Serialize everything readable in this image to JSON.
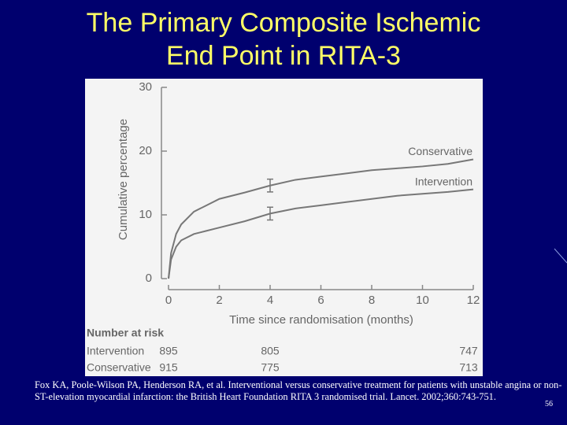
{
  "slide": {
    "title_lines": [
      "The Primary Composite Ischemic",
      "End Point in RITA-3"
    ],
    "footnote": "Fox KA, Poole-Wilson PA, Henderson RA, et al. Interventional versus conservative treatment for patients with unstable angina or non-ST-elevation myocardial infarction: the British Heart Foundation RITA 3 randomised trial. Lancet. 2002;360:743-751.",
    "page_number": "56"
  },
  "chart_data": {
    "type": "line",
    "x_label": "Time since randomisation (months)",
    "y_label": "Cumulative percentage",
    "x": [
      0,
      0.1,
      0.3,
      0.5,
      1,
      1.5,
      2,
      3,
      4,
      5,
      6,
      7,
      8,
      9,
      10,
      11,
      12
    ],
    "series": [
      {
        "name": "Conservative",
        "color": "#777777",
        "values": [
          0,
          4,
          7,
          8.5,
          10.5,
          11.5,
          12.5,
          13.5,
          14.6,
          15.5,
          16,
          16.5,
          17,
          17.3,
          17.6,
          18,
          18.7
        ],
        "errors": [
          null,
          null,
          null,
          null,
          null,
          null,
          null,
          null,
          1,
          null,
          null,
          null,
          null,
          null,
          null,
          null,
          null
        ]
      },
      {
        "name": "Intervention",
        "color": "#777777",
        "values": [
          0,
          3,
          5,
          6,
          7,
          7.5,
          8,
          9,
          10.2,
          11,
          11.5,
          12,
          12.5,
          13,
          13.3,
          13.6,
          14
        ],
        "errors": [
          null,
          null,
          null,
          null,
          null,
          null,
          null,
          null,
          1,
          null,
          null,
          null,
          null,
          null,
          null,
          null,
          null
        ]
      }
    ],
    "xlim": [
      0,
      12
    ],
    "xticks": [
      0,
      2,
      4,
      6,
      8,
      10,
      12
    ],
    "ylim": [
      0,
      30
    ],
    "yticks": [
      0,
      10,
      20,
      30
    ],
    "risk_table": {
      "title": "Number at risk",
      "x": [
        0,
        4,
        12
      ],
      "rows": [
        {
          "name": "Intervention",
          "values": [
            895,
            805,
            747
          ]
        },
        {
          "name": "Conservative",
          "values": [
            915,
            775,
            713
          ]
        }
      ]
    }
  }
}
